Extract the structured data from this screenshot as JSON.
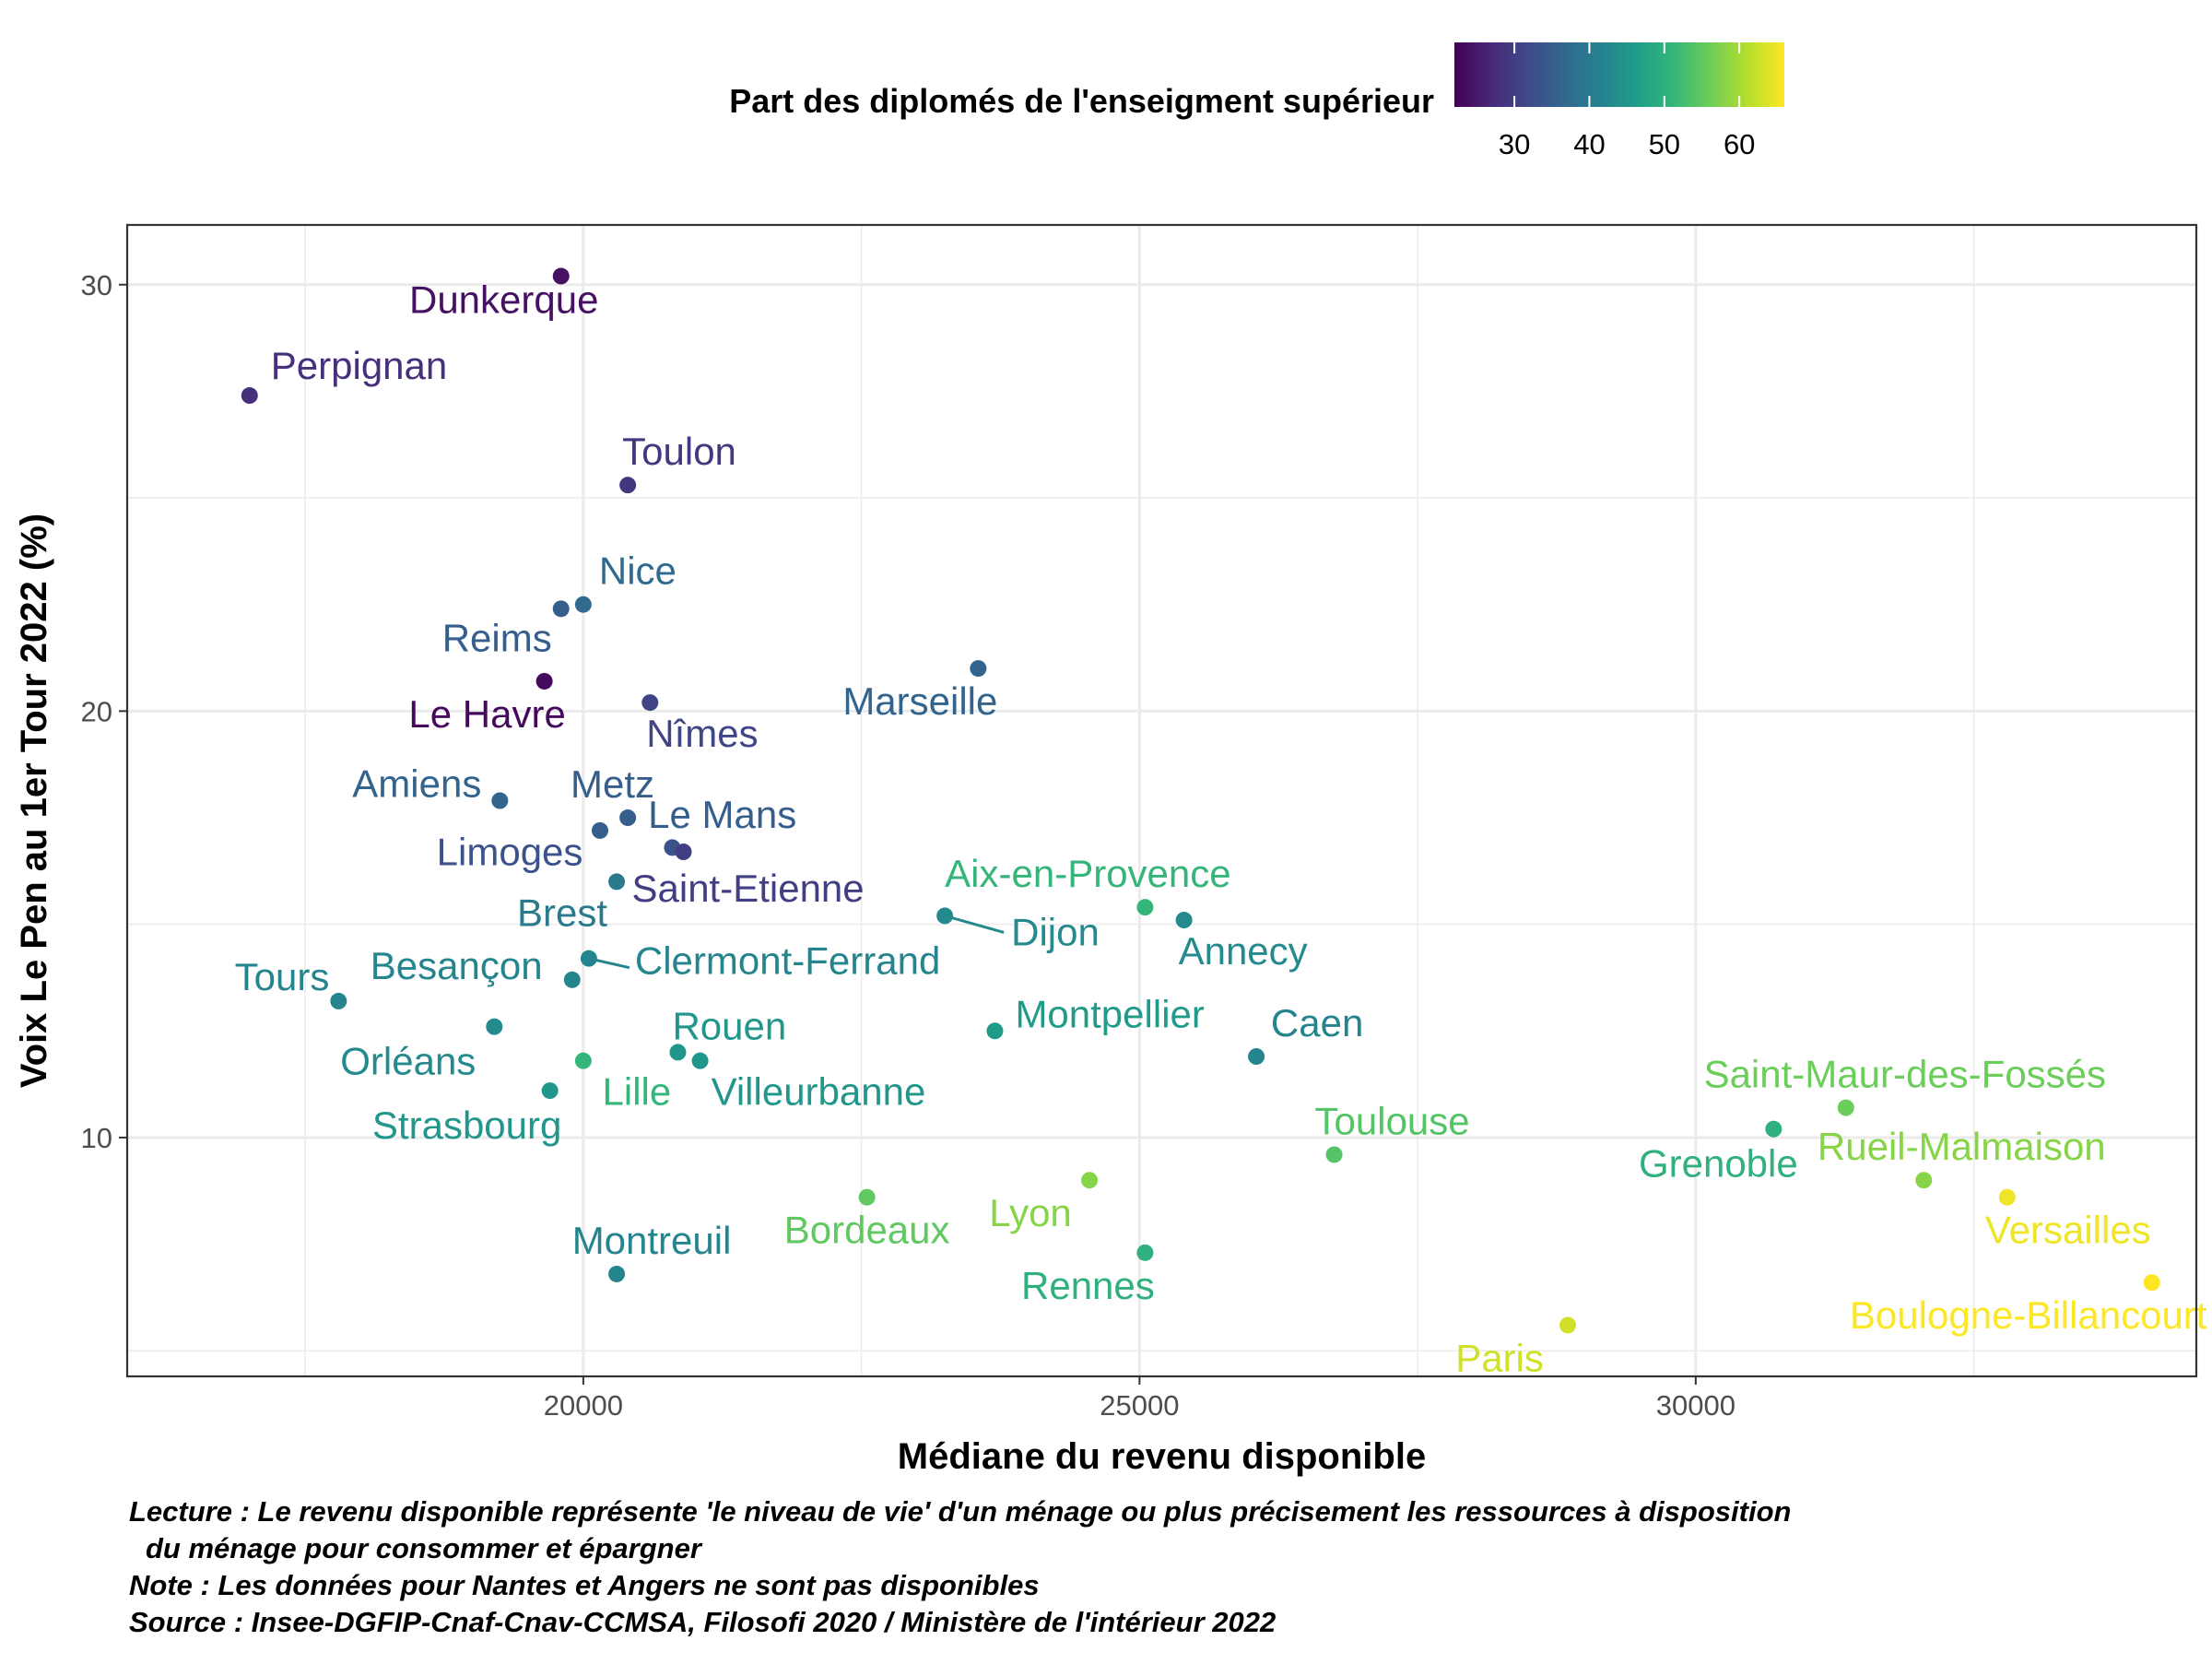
{
  "chart_data": {
    "type": "scatter",
    "xlabel": "Médiane du revenu disponible",
    "ylabel": "Voix Le Pen au 1er Tour 2022 (%)",
    "xlim": [
      15900,
      34500
    ],
    "ylim": [
      4.4,
      31.4
    ],
    "x_ticks": [
      20000,
      25000,
      30000
    ],
    "y_ticks": [
      10,
      20,
      30
    ],
    "grid": true,
    "legend": {
      "title": "Part des diplomés de l'enseigment supérieur",
      "position": "top",
      "ticks": [
        30,
        40,
        50,
        60
      ],
      "range": [
        22,
        66
      ],
      "colors": [
        "#440154",
        "#482878",
        "#3e4a89",
        "#31688e",
        "#26828e",
        "#1f9e89",
        "#35b779",
        "#6ece58",
        "#b5de2b",
        "#fde725"
      ]
    },
    "points": [
      {
        "label": "Dunkerque",
        "x": 19800,
        "y": 30.2,
        "color": 24
      },
      {
        "label": "Perpignan",
        "x": 17000,
        "y": 27.4,
        "color": 28
      },
      {
        "label": "Toulon",
        "x": 20400,
        "y": 25.3,
        "color": 29
      },
      {
        "label": "Nice",
        "x": 20000,
        "y": 22.5,
        "color": 37
      },
      {
        "label": "Reims",
        "x": 19800,
        "y": 22.4,
        "color": 35
      },
      {
        "label": "Le Havre",
        "x": 19650,
        "y": 20.7,
        "color": 23
      },
      {
        "label": "Nîmes",
        "x": 20600,
        "y": 20.2,
        "color": 31
      },
      {
        "label": "Marseille",
        "x": 23550,
        "y": 21.0,
        "color": 36
      },
      {
        "label": "Amiens",
        "x": 19250,
        "y": 17.9,
        "color": 36
      },
      {
        "label": "Metz",
        "x": 20150,
        "y": 17.2,
        "color": 35
      },
      {
        "label": "Le Mans",
        "x": 20400,
        "y": 17.5,
        "color": 35
      },
      {
        "label": "Limoges",
        "x": 20800,
        "y": 16.8,
        "color": 33
      },
      {
        "label": "Saint-Etienne",
        "x": 20900,
        "y": 16.7,
        "color": 30
      },
      {
        "label": "Brest",
        "x": 20300,
        "y": 16.0,
        "color": 40
      },
      {
        "label": "Dijon",
        "x": 23250,
        "y": 15.2,
        "color": 43
      },
      {
        "label": "Aix-en-Provence",
        "x": 25050,
        "y": 15.4,
        "color": 51
      },
      {
        "label": "Annecy",
        "x": 25400,
        "y": 15.1,
        "color": 43
      },
      {
        "label": "Clermont-Ferrand",
        "x": 20050,
        "y": 14.2,
        "color": 42
      },
      {
        "label": "Tours",
        "x": 17800,
        "y": 13.2,
        "color": 42
      },
      {
        "label": "Besançon",
        "x": 19900,
        "y": 13.7,
        "color": 42
      },
      {
        "label": "Orléans",
        "x": 19200,
        "y": 12.6,
        "color": 43
      },
      {
        "label": "Rouen",
        "x": 20850,
        "y": 12.0,
        "color": 45
      },
      {
        "label": "Villeurbanne",
        "x": 21050,
        "y": 11.8,
        "color": 45
      },
      {
        "label": "Lille",
        "x": 20000,
        "y": 11.8,
        "color": 51
      },
      {
        "label": "Strasbourg",
        "x": 19700,
        "y": 11.1,
        "color": 45
      },
      {
        "label": "Montpellier",
        "x": 23700,
        "y": 12.5,
        "color": 46
      },
      {
        "label": "Caen",
        "x": 26050,
        "y": 11.9,
        "color": 42
      },
      {
        "label": "Toulouse",
        "x": 26750,
        "y": 9.6,
        "color": 54
      },
      {
        "label": "Saint-Maur-des-Fossés",
        "x": 31350,
        "y": 10.7,
        "color": 56
      },
      {
        "label": "Grenoble",
        "x": 30700,
        "y": 10.2,
        "color": 50
      },
      {
        "label": "Rueil-Malmaison",
        "x": 32050,
        "y": 9.0,
        "color": 58
      },
      {
        "label": "Versailles",
        "x": 32800,
        "y": 8.6,
        "color": 65
      },
      {
        "label": "Boulogne-Billancourt",
        "x": 34100,
        "y": 6.6,
        "color": 66
      },
      {
        "label": "Paris",
        "x": 28850,
        "y": 5.6,
        "color": 63
      },
      {
        "label": "Lyon",
        "x": 24550,
        "y": 9.0,
        "color": 58
      },
      {
        "label": "Bordeaux",
        "x": 22550,
        "y": 8.6,
        "color": 55
      },
      {
        "label": "Rennes",
        "x": 25050,
        "y": 7.3,
        "color": 50
      },
      {
        "label": "Montreuil",
        "x": 20300,
        "y": 6.8,
        "color": 42
      }
    ]
  },
  "caption": [
    "Lecture : Le revenu disponible représente 'le niveau de vie' d'un ménage ou plus précisement les ressources à disposition",
    "du ménage pour consommer et épargner",
    "Note : Les données pour Nantes et Angers ne sont pas disponibles",
    "Source : Insee-DGFIP-Cnaf-Cnav-CCMSA, Filosofi 2020 / Ministère de l'intérieur 2022"
  ]
}
